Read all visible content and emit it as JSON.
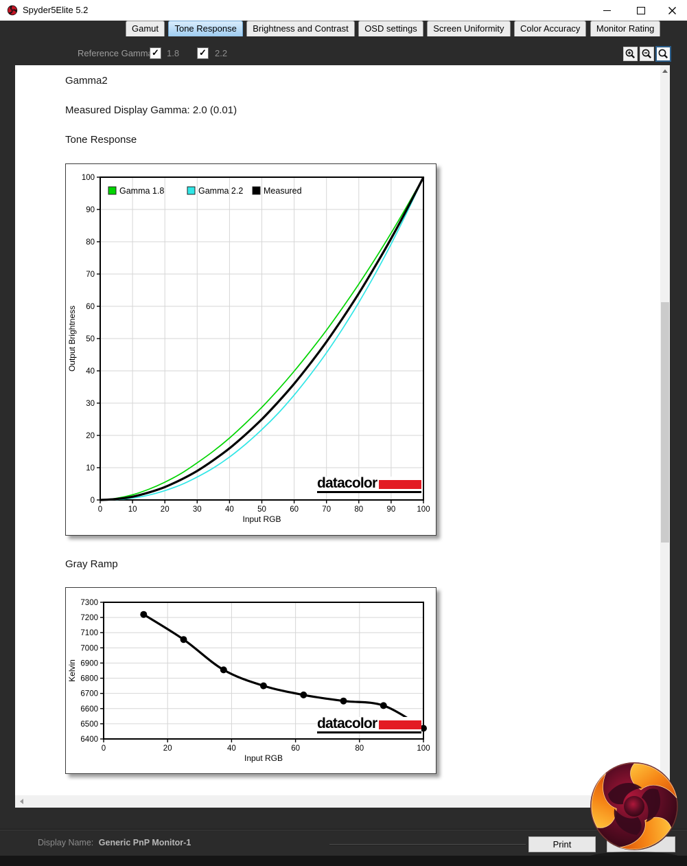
{
  "window": {
    "title": "Spyder5Elite 5.2"
  },
  "icons": {
    "app": "spyder-swirl",
    "minimize": "minimize-line",
    "maximize": "maximize-square",
    "close": "close-x",
    "check": "✓",
    "zoom_in": "magnifier-plus",
    "zoom_out": "magnifier-minus",
    "zoom_default": "magnifier",
    "scroll_up": "triangle-up",
    "scroll_down": "triangle-down",
    "scroll_left": "triangle-left",
    "scroll_right": "triangle-right"
  },
  "tabs": [
    {
      "label": "Gamut",
      "selected": false
    },
    {
      "label": "Tone Response",
      "selected": true
    },
    {
      "label": "Brightness and Contrast",
      "selected": false
    },
    {
      "label": "OSD settings",
      "selected": false
    },
    {
      "label": "Screen Uniformity",
      "selected": false
    },
    {
      "label": "Color Accuracy",
      "selected": false
    },
    {
      "label": "Monitor Rating",
      "selected": false
    }
  ],
  "toolbar": {
    "reference_gamma_label": "Reference Gamma:",
    "checkboxes": [
      {
        "label": "1.8",
        "checked": true
      },
      {
        "label": "2.2",
        "checked": true
      }
    ],
    "zoom_buttons": [
      {
        "name": "zoom-in",
        "icon": "magnifier-plus",
        "selected": false
      },
      {
        "name": "zoom-out",
        "icon": "magnifier-minus",
        "selected": false
      },
      {
        "name": "zoom-default",
        "icon": "magnifier",
        "selected": true
      }
    ]
  },
  "page": {
    "heading": "Gamma2",
    "measured_gamma": "Measured Display Gamma: 2.0 (0.01)",
    "section_tone": "Tone Response",
    "section_gray": "Gray Ramp"
  },
  "brand": {
    "name": "datacolor",
    "red": "#e31b23"
  },
  "statusbar": {
    "display_name_label": "Display Name:",
    "display_name_value": "Generic PnP Monitor-1",
    "print_label": "Print"
  },
  "colors": {
    "app_bg": "#2b2b2b",
    "tab_selected": "#a9d1f1",
    "gamma18_green": "#00d400",
    "gamma22_cyan": "#30e6e6",
    "measured_black": "#000000",
    "gridline": "#d6d6d6",
    "datacolor_red": "#e31b23"
  },
  "chart_data": [
    {
      "type": "line",
      "title": "Tone Response",
      "xlabel": "Input RGB",
      "ylabel": "Output Brightness",
      "xlim": [
        0,
        100
      ],
      "ylim": [
        0,
        100
      ],
      "xticks": [
        0,
        10,
        20,
        30,
        40,
        50,
        60,
        70,
        80,
        90,
        100
      ],
      "yticks": [
        0,
        10,
        20,
        30,
        40,
        50,
        60,
        70,
        80,
        90,
        100
      ],
      "grid": true,
      "legend_position": "top-left-inside",
      "x": [
        0,
        5,
        10,
        15,
        20,
        25,
        30,
        35,
        40,
        45,
        50,
        55,
        60,
        65,
        70,
        75,
        80,
        85,
        90,
        95,
        100
      ],
      "series": [
        {
          "name": "Gamma 1.8",
          "gamma": 1.8,
          "color": "#00d400",
          "width": 1.7,
          "values": [
            0,
            0.5,
            1.6,
            3.3,
            5.5,
            8.2,
            11.5,
            15.1,
            19.2,
            23.8,
            28.7,
            34.1,
            39.9,
            46.1,
            52.6,
            59.6,
            66.9,
            74.6,
            82.7,
            91.2,
            100
          ]
        },
        {
          "name": "Gamma 2.2",
          "gamma": 2.2,
          "color": "#30e6e6",
          "width": 1.7,
          "values": [
            0,
            0.1,
            0.6,
            1.5,
            2.9,
            4.7,
            7.1,
            9.9,
            13.3,
            17.3,
            21.8,
            26.8,
            32.5,
            38.8,
            45.6,
            53.1,
            61.2,
            69.9,
            79.3,
            89.3,
            100
          ]
        },
        {
          "name": "Measured",
          "gamma": 2.0,
          "color": "#000000",
          "width": 3.2,
          "values": [
            0,
            0.3,
            1.0,
            2.3,
            4.0,
            6.3,
            9.0,
            12.3,
            16.0,
            20.3,
            25.0,
            30.3,
            36.0,
            42.3,
            49.0,
            56.3,
            64.0,
            72.3,
            81.0,
            90.3,
            100
          ]
        }
      ]
    },
    {
      "type": "line",
      "title": "Gray Ramp",
      "xlabel": "Input RGB",
      "ylabel": "Kelvin",
      "xlim": [
        0,
        100
      ],
      "ylim": [
        6400,
        7300
      ],
      "xticks": [
        0,
        20,
        40,
        60,
        80,
        100
      ],
      "yticks": [
        6400,
        6500,
        6600,
        6700,
        6800,
        6900,
        7000,
        7100,
        7200,
        7300
      ],
      "grid": true,
      "marker": "circle",
      "color": "#000000",
      "x": [
        12.5,
        25,
        37.5,
        50,
        62.5,
        75,
        87.5,
        100
      ],
      "values": [
        7220,
        7055,
        6855,
        6750,
        6690,
        6650,
        6620,
        6470
      ]
    }
  ]
}
